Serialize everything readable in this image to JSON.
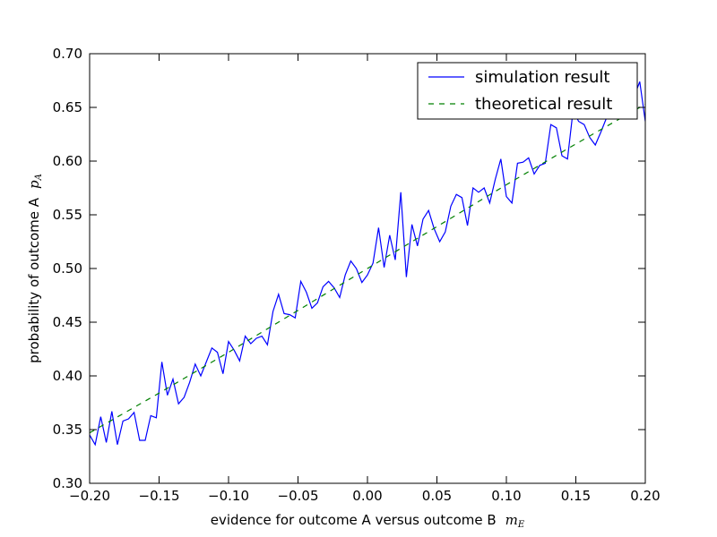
{
  "chart_data": {
    "type": "line",
    "xlabel": "evidence for outcome A versus outcome B",
    "xlabel_symbol": "m",
    "xlabel_subscript": "E",
    "ylabel": "probability of outcome A",
    "ylabel_symbol": "p",
    "ylabel_subscript": "A",
    "xlim": [
      -0.2,
      0.2
    ],
    "ylim": [
      0.3,
      0.7
    ],
    "xticks": [
      {
        "value": -0.2,
        "label": "−0.20"
      },
      {
        "value": -0.15,
        "label": "−0.15"
      },
      {
        "value": -0.1,
        "label": "−0.10"
      },
      {
        "value": -0.05,
        "label": "−0.05"
      },
      {
        "value": 0,
        "label": "0.00"
      },
      {
        "value": 0.05,
        "label": "0.05"
      },
      {
        "value": 0.1,
        "label": "0.10"
      },
      {
        "value": 0.15,
        "label": "0.15"
      },
      {
        "value": 0.2,
        "label": "0.20"
      }
    ],
    "yticks": [
      {
        "value": 0.3,
        "label": "0.30"
      },
      {
        "value": 0.35,
        "label": "0.35"
      },
      {
        "value": 0.4,
        "label": "0.40"
      },
      {
        "value": 0.45,
        "label": "0.45"
      },
      {
        "value": 0.5,
        "label": "0.50"
      },
      {
        "value": 0.55,
        "label": "0.55"
      },
      {
        "value": 0.6,
        "label": "0.60"
      },
      {
        "value": 0.65,
        "label": "0.65"
      },
      {
        "value": 0.7,
        "label": "0.70"
      }
    ],
    "legend": "upper right",
    "series": [
      {
        "name": "simulation result",
        "color": "#0000ff",
        "dash": "solid",
        "x": [
          -0.2,
          -0.196,
          -0.192,
          -0.188,
          -0.184,
          -0.18,
          -0.176,
          -0.172,
          -0.168,
          -0.164,
          -0.16,
          -0.156,
          -0.152,
          -0.148,
          -0.144,
          -0.14,
          -0.136,
          -0.132,
          -0.128,
          -0.124,
          -0.12,
          -0.116,
          -0.112,
          -0.108,
          -0.104,
          -0.1,
          -0.096,
          -0.092,
          -0.088,
          -0.084,
          -0.08,
          -0.076,
          -0.072,
          -0.068,
          -0.064,
          -0.06,
          -0.056,
          -0.052,
          -0.048,
          -0.044,
          -0.04,
          -0.036,
          -0.032,
          -0.028,
          -0.024,
          -0.02,
          -0.016,
          -0.012,
          -0.008,
          -0.004,
          0,
          0.004,
          0.008,
          0.012,
          0.016,
          0.02,
          0.024,
          0.028,
          0.032,
          0.036,
          0.04,
          0.044,
          0.048,
          0.052,
          0.056,
          0.06,
          0.064,
          0.068,
          0.072,
          0.076,
          0.08,
          0.084,
          0.088,
          0.092,
          0.096,
          0.1,
          0.104,
          0.108,
          0.112,
          0.116,
          0.12,
          0.124,
          0.128,
          0.132,
          0.136,
          0.14,
          0.144,
          0.148,
          0.152,
          0.156,
          0.16,
          0.164,
          0.168,
          0.172,
          0.176,
          0.18,
          0.184,
          0.188,
          0.192,
          0.196,
          0.2
        ],
        "values": [
          0.345,
          0.336,
          0.362,
          0.338,
          0.367,
          0.336,
          0.358,
          0.36,
          0.366,
          0.34,
          0.34,
          0.363,
          0.361,
          0.413,
          0.382,
          0.397,
          0.374,
          0.38,
          0.394,
          0.411,
          0.4,
          0.413,
          0.426,
          0.422,
          0.402,
          0.432,
          0.424,
          0.414,
          0.437,
          0.43,
          0.435,
          0.437,
          0.429,
          0.46,
          0.476,
          0.458,
          0.457,
          0.454,
          0.488,
          0.478,
          0.463,
          0.468,
          0.483,
          0.488,
          0.482,
          0.473,
          0.494,
          0.507,
          0.5,
          0.487,
          0.494,
          0.505,
          0.538,
          0.501,
          0.531,
          0.508,
          0.571,
          0.492,
          0.541,
          0.521,
          0.546,
          0.554,
          0.537,
          0.525,
          0.534,
          0.558,
          0.569,
          0.566,
          0.54,
          0.575,
          0.571,
          0.575,
          0.561,
          0.583,
          0.602,
          0.567,
          0.561,
          0.598,
          0.599,
          0.603,
          0.588,
          0.596,
          0.598,
          0.634,
          0.631,
          0.605,
          0.602,
          0.647,
          0.637,
          0.634,
          0.622,
          0.615,
          0.627,
          0.64,
          0.648,
          0.65,
          0.652,
          0.655,
          0.66,
          0.674,
          0.637
        ]
      },
      {
        "name": "theoretical result",
        "color": "#008000",
        "dash": "dashed",
        "x": [
          -0.2,
          -0.15,
          -0.1,
          -0.05,
          0,
          0.05,
          0.1,
          0.15,
          0.2
        ],
        "values": [
          0.347,
          0.384,
          0.422,
          0.461,
          0.5,
          0.539,
          0.578,
          0.616,
          0.653
        ]
      }
    ]
  }
}
